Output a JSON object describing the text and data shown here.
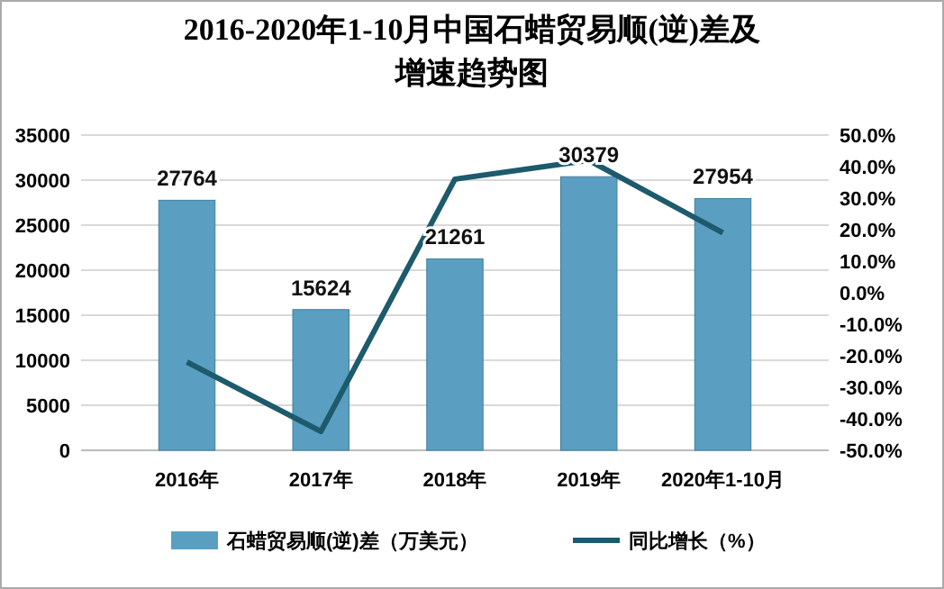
{
  "chart_data": {
    "type": "bar",
    "title": "2016-2020年1-10月中国石蜡贸易顺(逆)差及增速趋势图",
    "categories": [
      "2016年",
      "2017年",
      "2018年",
      "2019年",
      "2020年1-10月"
    ],
    "series": [
      {
        "name": "石蜡贸易顺(逆)差（万美元）",
        "color": "#5a9fc2",
        "values": [
          27764,
          15624,
          21261,
          30379,
          27954
        ],
        "data_labels": true
      },
      {
        "name": "同比增长（%）",
        "type": "line",
        "axis": "y2",
        "color": "#1d5a6c",
        "values": [
          -22,
          -44,
          36,
          42,
          19
        ],
        "marker": "none"
      }
    ],
    "ylim": [
      0,
      35000
    ],
    "yticks": [
      0,
      5000,
      10000,
      15000,
      20000,
      25000,
      30000,
      35000
    ],
    "y2lim": [
      -50,
      50
    ],
    "y2ticks": [
      {
        "value": -50,
        "label": "-50.0%"
      },
      {
        "value": -40,
        "label": "-40.0%"
      },
      {
        "value": -30,
        "label": "-30.0%"
      },
      {
        "value": -20,
        "label": "-20.0%"
      },
      {
        "value": -10,
        "label": "-10.0%"
      },
      {
        "value": 0,
        "label": "0.0%"
      },
      {
        "value": 10,
        "label": "10.0%"
      },
      {
        "value": 20,
        "label": "20.0%"
      },
      {
        "value": 30,
        "label": "30.0%"
      },
      {
        "value": 40,
        "label": "40.0%"
      },
      {
        "value": 50,
        "label": "50.0%"
      }
    ],
    "grid": "y",
    "legend": "bottom"
  }
}
